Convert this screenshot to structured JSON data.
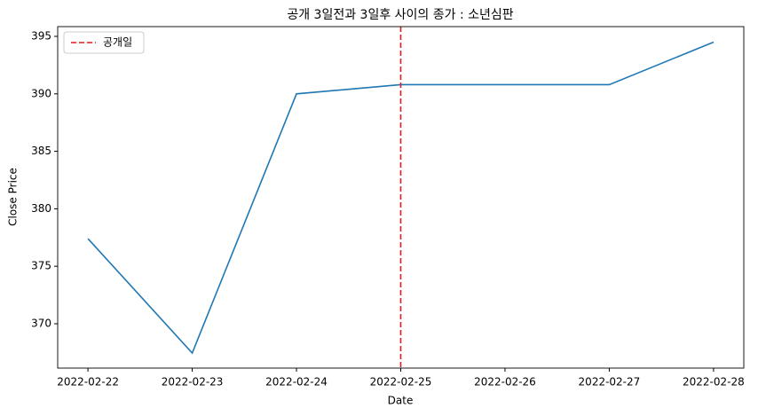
{
  "chart_data": {
    "type": "line",
    "title": "공개 3일전과 3일후 사이의 종가 : 소년심판",
    "x_label": "Date",
    "y_label": "Close Price",
    "x": [
      "2022-02-22",
      "2022-02-23",
      "2022-02-24",
      "2022-02-25",
      "2022-02-26",
      "2022-02-27",
      "2022-02-28"
    ],
    "series": [
      {
        "name": null,
        "color": "#1f77b4",
        "values": [
          377.4,
          367.45,
          390.0,
          390.8,
          390.8,
          390.8,
          394.5
        ]
      }
    ],
    "vlines": [
      {
        "x": "2022-02-25",
        "name": "공개일",
        "color": "#e41a1c",
        "style": "dashed"
      }
    ],
    "xlim": [
      "2022-02-21T17:02",
      "2022-02-28T06:58"
    ],
    "xticks": [
      "2022-02-22",
      "2022-02-23",
      "2022-02-24",
      "2022-02-25",
      "2022-02-26",
      "2022-02-27",
      "2022-02-28"
    ],
    "ylim": [
      366.14,
      395.85
    ],
    "yticks": [
      370,
      375,
      380,
      385,
      390,
      395
    ],
    "legend": "upper left",
    "grid": false
  }
}
